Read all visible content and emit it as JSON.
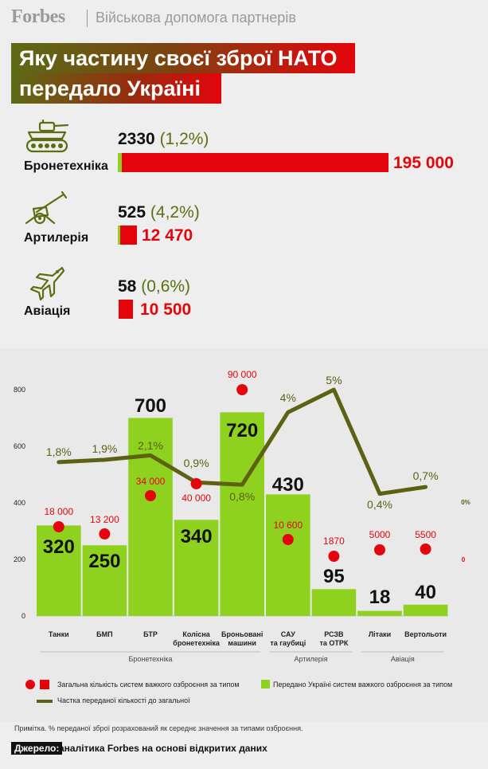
{
  "header": {
    "brand": "Forbes",
    "subtitle": "Військова допомога партнерів"
  },
  "title": {
    "line1": "Яку частину своєї зброї НАТО",
    "line2": "передало Україні"
  },
  "summary": [
    {
      "label": "Бронетехніка",
      "icon": "tank-icon",
      "given": "2330",
      "pct": "(1,2%)",
      "total": "195 000",
      "given_value": 2330,
      "total_value": 195000
    },
    {
      "label": "Артилерія",
      "icon": "artillery-icon",
      "given": "525",
      "pct": "(4,2%)",
      "total": "12 470",
      "given_value": 525,
      "total_value": 12470
    },
    {
      "label": "Авіація",
      "icon": "aircraft-icon",
      "given": "58",
      "pct": "(0,6%)",
      "total": "10 500",
      "given_value": 58,
      "total_value": 10500
    }
  ],
  "chart_data": {
    "type": "bar",
    "categories": [
      "Танки",
      "БМП",
      "БТР",
      "Колісна бронетехніка",
      "Броньовані машини",
      "САУ та гаубиці",
      "РСЗВ та ОТРК",
      "Літаки",
      "Вертольоти"
    ],
    "category_labels": [
      [
        "Танки"
      ],
      [
        "БМП"
      ],
      [
        "БТР"
      ],
      [
        "Колісна",
        "бронетехніка"
      ],
      [
        "Броньовані",
        "машини"
      ],
      [
        "САУ",
        "та гаубиці"
      ],
      [
        "РСЗВ",
        "та ОТРК"
      ],
      [
        "Літаки"
      ],
      [
        "Вертольоти"
      ]
    ],
    "groups": [
      {
        "name": "Бронетехніка",
        "from": 0,
        "to": 4
      },
      {
        "name": "Артилерія",
        "from": 5,
        "to": 6
      },
      {
        "name": "Авіація",
        "from": 7,
        "to": 8
      }
    ],
    "ylim": [
      0,
      800
    ],
    "yticks": [
      0,
      200,
      400,
      600,
      800
    ],
    "series": [
      {
        "name": "Передано Україні систем важкого озброєння за типом",
        "kind": "bar",
        "color": "#8ed11e",
        "values": [
          320,
          250,
          700,
          340,
          720,
          430,
          95,
          18,
          40
        ],
        "labels": [
          "320",
          "250",
          "700",
          "340",
          "720",
          "430",
          "95",
          "18",
          "40"
        ]
      },
      {
        "name": "Загальна кількість систем важкого озброєння за типом",
        "kind": "dot",
        "color": "#e4050c",
        "values": [
          18000,
          13200,
          34000,
          40000,
          90000,
          10600,
          1870,
          5000,
          5500
        ],
        "labels": [
          "18 000",
          "13 200",
          "34 000",
          "40 000",
          "90 000",
          "10 600",
          "1870",
          "5000",
          "5500"
        ]
      },
      {
        "name": "Частка переданої кількості до загальної",
        "kind": "line",
        "color": "#5c6114",
        "values": [
          1.8,
          1.9,
          2.1,
          0.9,
          0.8,
          4,
          5,
          0.4,
          0.7
        ],
        "labels": [
          "1,8%",
          "1,9%",
          "2,1%",
          "0,9%",
          "0,8%",
          "4%",
          "5%",
          "0,4%",
          "0,7%"
        ]
      }
    ],
    "right_axis": {
      "pct_label": "0%",
      "count_label": "0"
    }
  },
  "legend": {
    "total": "Загальна кількість систем важкого озброєння за типом",
    "given": "Передано Україні систем важкого озброєння за типом",
    "share": "Частка переданої кількості до загальної"
  },
  "footer": {
    "note": "Примітка. % переданої зброї розрахований як середнє значення за типами озброєння.",
    "source_label": "Джерело:",
    "source_text": "аналітика Forbes на основі відкритих даних"
  },
  "colors": {
    "red": "#e4050c",
    "green": "#8ed11e",
    "olive": "#5c6114"
  }
}
